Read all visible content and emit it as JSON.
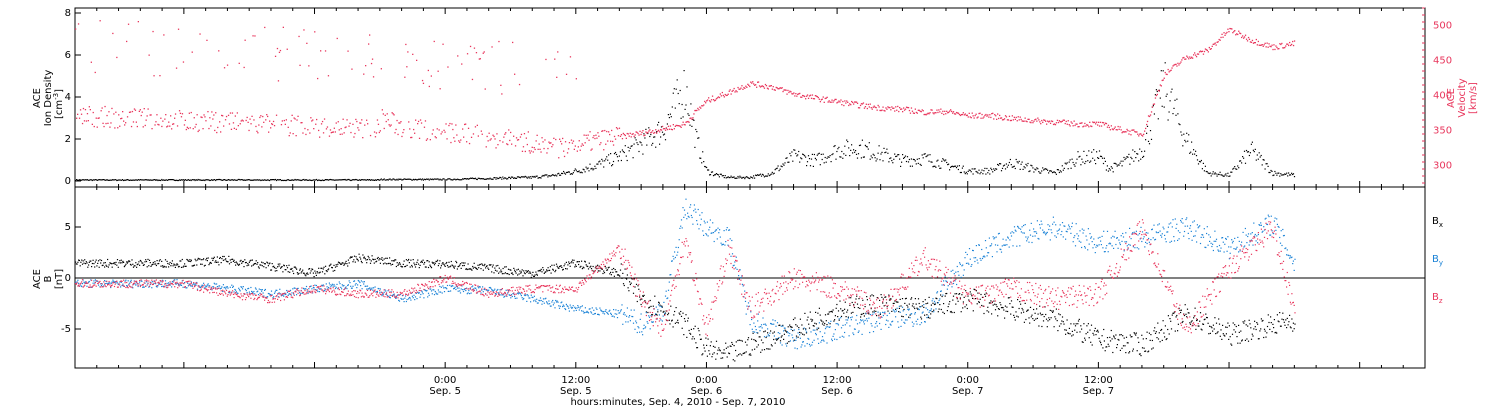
{
  "chart_data": [
    {
      "type": "scatter",
      "panel": "plasma",
      "ylabel_left": [
        "ACE",
        "Ion Density",
        "[cm",
        "-3",
        "]"
      ],
      "ylabel_right": [
        "ACE",
        "Velocity",
        "[km/s]"
      ],
      "ylim_left": [
        0,
        8
      ],
      "ylim_right": [
        275,
        525
      ],
      "yticks_left": [
        "0",
        "2",
        "4",
        "6",
        "8"
      ],
      "yticks_right": [
        "300",
        "350",
        "400",
        "450",
        "500"
      ],
      "colors": {
        "density": "#000000",
        "velocity": "#e8365c"
      },
      "x_unit": "hours since Sep. 4, 2010 00:00",
      "series": [
        {
          "axis": "left",
          "x": [
            18,
            20,
            24,
            28,
            32,
            34,
            36,
            38,
            40,
            42,
            44,
            45,
            46,
            47,
            48,
            49,
            50,
            52,
            54,
            56,
            58,
            60,
            62,
            64,
            66,
            68,
            70,
            72,
            74,
            76,
            78,
            80,
            82,
            84,
            85,
            86,
            88,
            90,
            92,
            94,
            96,
            98,
            100,
            102
          ],
          "y": [
            0.1,
            0.1,
            0.1,
            0.15,
            0.2,
            0.3,
            0.5,
            0.8,
            1.2,
            1.8,
            2.5,
            3.5,
            4.5,
            2.0,
            0.5,
            0.3,
            0.2,
            0.2,
            0.4,
            1.2,
            1.0,
            1.5,
            1.6,
            1.3,
            1.0,
            1.1,
            0.8,
            0.5,
            0.5,
            0.9,
            0.6,
            0.4,
            1.1,
            1.2,
            0.6,
            0.8,
            1.5,
            4.5,
            2.0,
            0.4,
            0.3,
            1.5,
            0.4,
            0.3
          ]
        },
        {
          "axis": "right",
          "x": [
            18,
            20,
            24,
            28,
            32,
            34,
            36,
            38,
            40,
            42,
            44,
            46,
            47,
            48,
            50,
            52,
            54,
            56,
            58,
            60,
            62,
            64,
            66,
            68,
            70,
            72,
            74,
            76,
            78,
            80,
            82,
            84,
            86,
            88,
            90,
            92,
            94,
            96,
            98,
            100,
            102
          ],
          "y": [
            370,
            355,
            348,
            342,
            333,
            325,
            330,
            337,
            342,
            347,
            353,
            360,
            378,
            393,
            405,
            418,
            413,
            403,
            397,
            392,
            387,
            383,
            381,
            377,
            378,
            372,
            372,
            368,
            365,
            363,
            360,
            360,
            352,
            345,
            430,
            455,
            465,
            495,
            480,
            470,
            475
          ]
        }
      ]
    },
    {
      "type": "scatter",
      "panel": "magnetic",
      "ylabel": [
        "ACE",
        "B",
        "[nT]"
      ],
      "ylim": [
        -9,
        9
      ],
      "yticks": [
        "-5",
        "0",
        "5"
      ],
      "legend": [
        {
          "label": "B",
          "sub": "x",
          "color": "#000000"
        },
        {
          "label": "B",
          "sub": "y",
          "color": "#1a82d6"
        },
        {
          "label": "B",
          "sub": "z",
          "color": "#e8365c"
        }
      ],
      "series": [
        {
          "name": "Bx",
          "x": [
            0,
            4,
            8,
            12,
            16,
            20,
            24,
            28,
            32,
            36,
            40,
            42,
            44,
            46,
            48,
            50,
            52,
            56,
            60,
            64,
            68,
            72,
            76,
            80,
            84,
            88,
            92,
            96,
            100,
            102
          ],
          "y": [
            1.5,
            1.8,
            1.2,
            0.5,
            2.0,
            1.5,
            1.4,
            1.0,
            0.5,
            1.5,
            0.5,
            -2.0,
            -3.0,
            -4.5,
            -7.0,
            -7.5,
            -6.5,
            -5.0,
            -3.0,
            -2.5,
            -3.0,
            -2.0,
            -3.0,
            -4.0,
            -6.0,
            -6.5,
            -3.5,
            -5.5,
            -4.5,
            -4.0
          ]
        },
        {
          "name": "By",
          "x": [
            0,
            4,
            8,
            12,
            16,
            20,
            24,
            28,
            32,
            36,
            40,
            42,
            44,
            46,
            48,
            50,
            52,
            56,
            60,
            64,
            68,
            72,
            76,
            80,
            84,
            88,
            92,
            96,
            100,
            102
          ],
          "y": [
            -0.5,
            -1.0,
            -1.5,
            -1.0,
            -0.5,
            -2.0,
            -1.0,
            -1.2,
            -2.0,
            -3.0,
            -3.5,
            -4.5,
            -3.0,
            7.0,
            5.0,
            4.0,
            -4.0,
            -6.0,
            -5.0,
            -4.0,
            -3.5,
            2.0,
            4.0,
            5.0,
            3.5,
            4.0,
            5.0,
            3.0,
            5.5,
            1.5
          ]
        },
        {
          "name": "Bz",
          "x": [
            0,
            4,
            8,
            12,
            16,
            20,
            24,
            28,
            32,
            36,
            40,
            42,
            44,
            46,
            48,
            50,
            52,
            56,
            60,
            64,
            68,
            72,
            76,
            80,
            84,
            88,
            92,
            96,
            100,
            102
          ],
          "y": [
            -0.5,
            -1.5,
            -2.0,
            -1.0,
            -1.5,
            -1.5,
            0.0,
            -1.5,
            -1.0,
            -1.0,
            3.0,
            -2.0,
            -5.0,
            4.0,
            -5.0,
            3.0,
            -3.0,
            0.0,
            -1.0,
            -3.0,
            2.0,
            -2.0,
            -1.0,
            -2.0,
            -1.5,
            5.0,
            -5.0,
            1.0,
            5.0,
            -3.0
          ]
        }
      ]
    }
  ],
  "x_axis": {
    "ticks": [
      {
        "hour": 24,
        "time": "0:00",
        "day": "Sep. 5"
      },
      {
        "hour": 36,
        "time": "12:00",
        "day": "Sep. 5"
      },
      {
        "hour": 48,
        "time": "0:00",
        "day": "Sep. 6"
      },
      {
        "hour": 60,
        "time": "12:00",
        "day": "Sep. 6"
      },
      {
        "hour": 72,
        "time": "0:00",
        "day": "Sep. 7"
      },
      {
        "hour": 84,
        "time": "12:00",
        "day": "Sep. 7"
      }
    ],
    "label": "hours:minutes, Sep.  4, 2010 - Sep.  7, 2010"
  }
}
